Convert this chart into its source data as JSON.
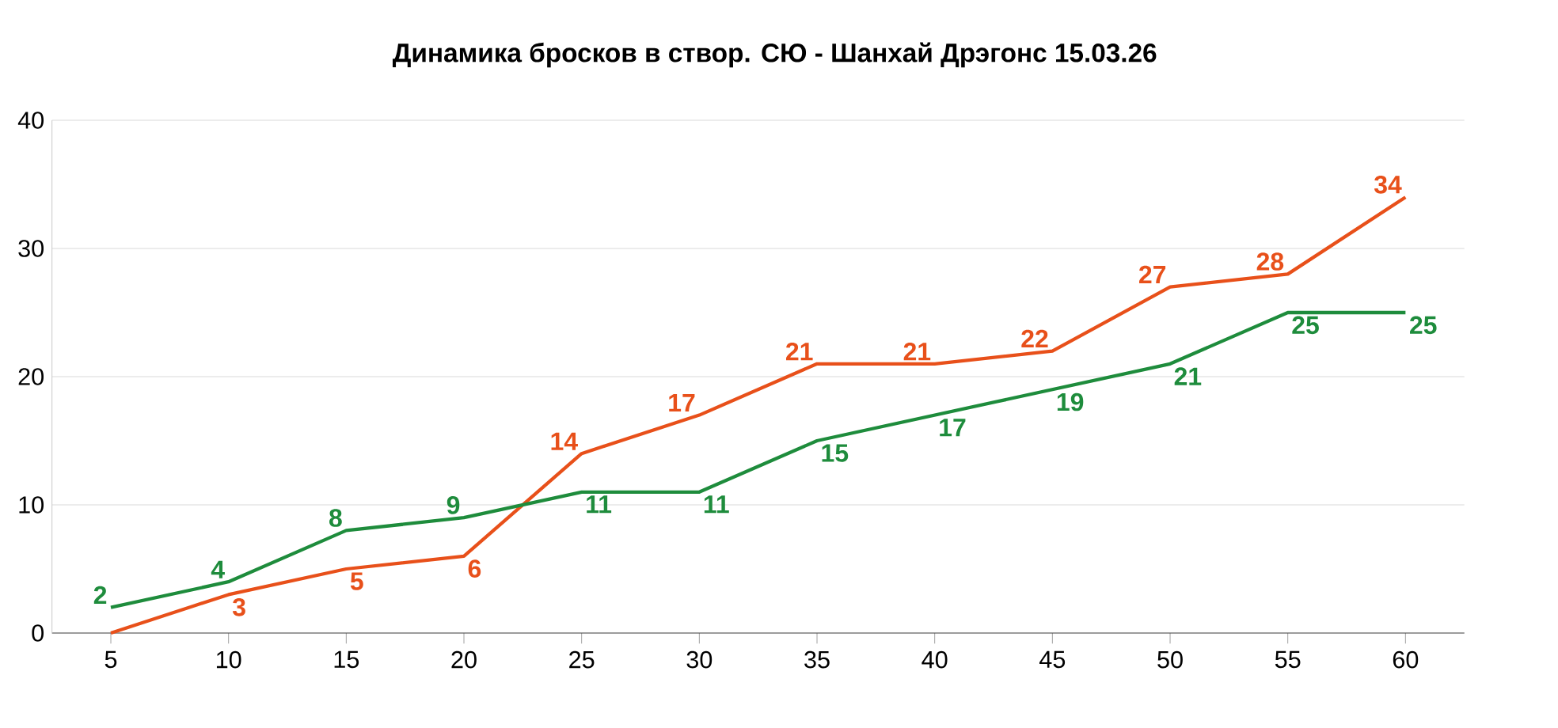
{
  "chart_data": {
    "type": "line",
    "title": "Динамика бросков в створ. СЮ - Шанхай Дрэгонс 15.03.26",
    "categories": [
      "5",
      "10",
      "15",
      "20",
      "25",
      "30",
      "35",
      "40",
      "45",
      "50",
      "55",
      "60"
    ],
    "series": [
      {
        "color": "#e8501a",
        "values": [
          0,
          3,
          5,
          6,
          14,
          17,
          21,
          21,
          22,
          27,
          28,
          34
        ],
        "value_labels": [
          null,
          "3",
          "5",
          "6",
          "14",
          "17",
          "21",
          "21",
          "22",
          "27",
          "28",
          "34"
        ]
      },
      {
        "color": "#1e8c3c",
        "values": [
          2,
          4,
          8,
          9,
          11,
          11,
          15,
          17,
          19,
          21,
          25,
          25
        ],
        "value_labels": [
          "2",
          "4",
          "8",
          "9",
          "11",
          "11",
          "15",
          "17",
          "19",
          "21",
          "25",
          "25"
        ]
      }
    ],
    "ylim": [
      0,
      40
    ],
    "yticks": [
      0,
      10,
      20,
      30,
      40
    ],
    "grid": "y",
    "line_style": "solid"
  }
}
